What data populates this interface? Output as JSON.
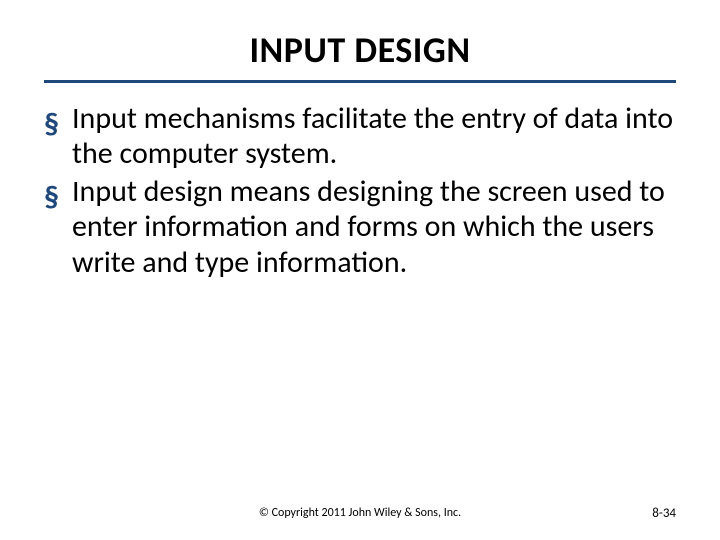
{
  "title": {
    "text": "INPUT DESIGN",
    "fontsize": 36,
    "color": "#000000",
    "weight": 700
  },
  "rule": {
    "color": "#1f497d",
    "thickness": 3
  },
  "bullets": {
    "marker_color": "#1f497d",
    "marker_glyph": "§",
    "marker_fontsize": 30,
    "text_fontsize": 30,
    "text_color": "#000000",
    "items": [
      "Input mechanisms facilitate the entry of data into the computer system.",
      "Input design means designing the screen used to enter information and forms on which the users write and type  information."
    ]
  },
  "footer": {
    "copyright": "© Copyright 2011 John Wiley & Sons, Inc.",
    "copyright_fontsize": 12,
    "copyright_color": "#000000",
    "page": "8-34",
    "page_fontsize": 13,
    "page_color": "#000000"
  },
  "background_color": "#ffffff"
}
